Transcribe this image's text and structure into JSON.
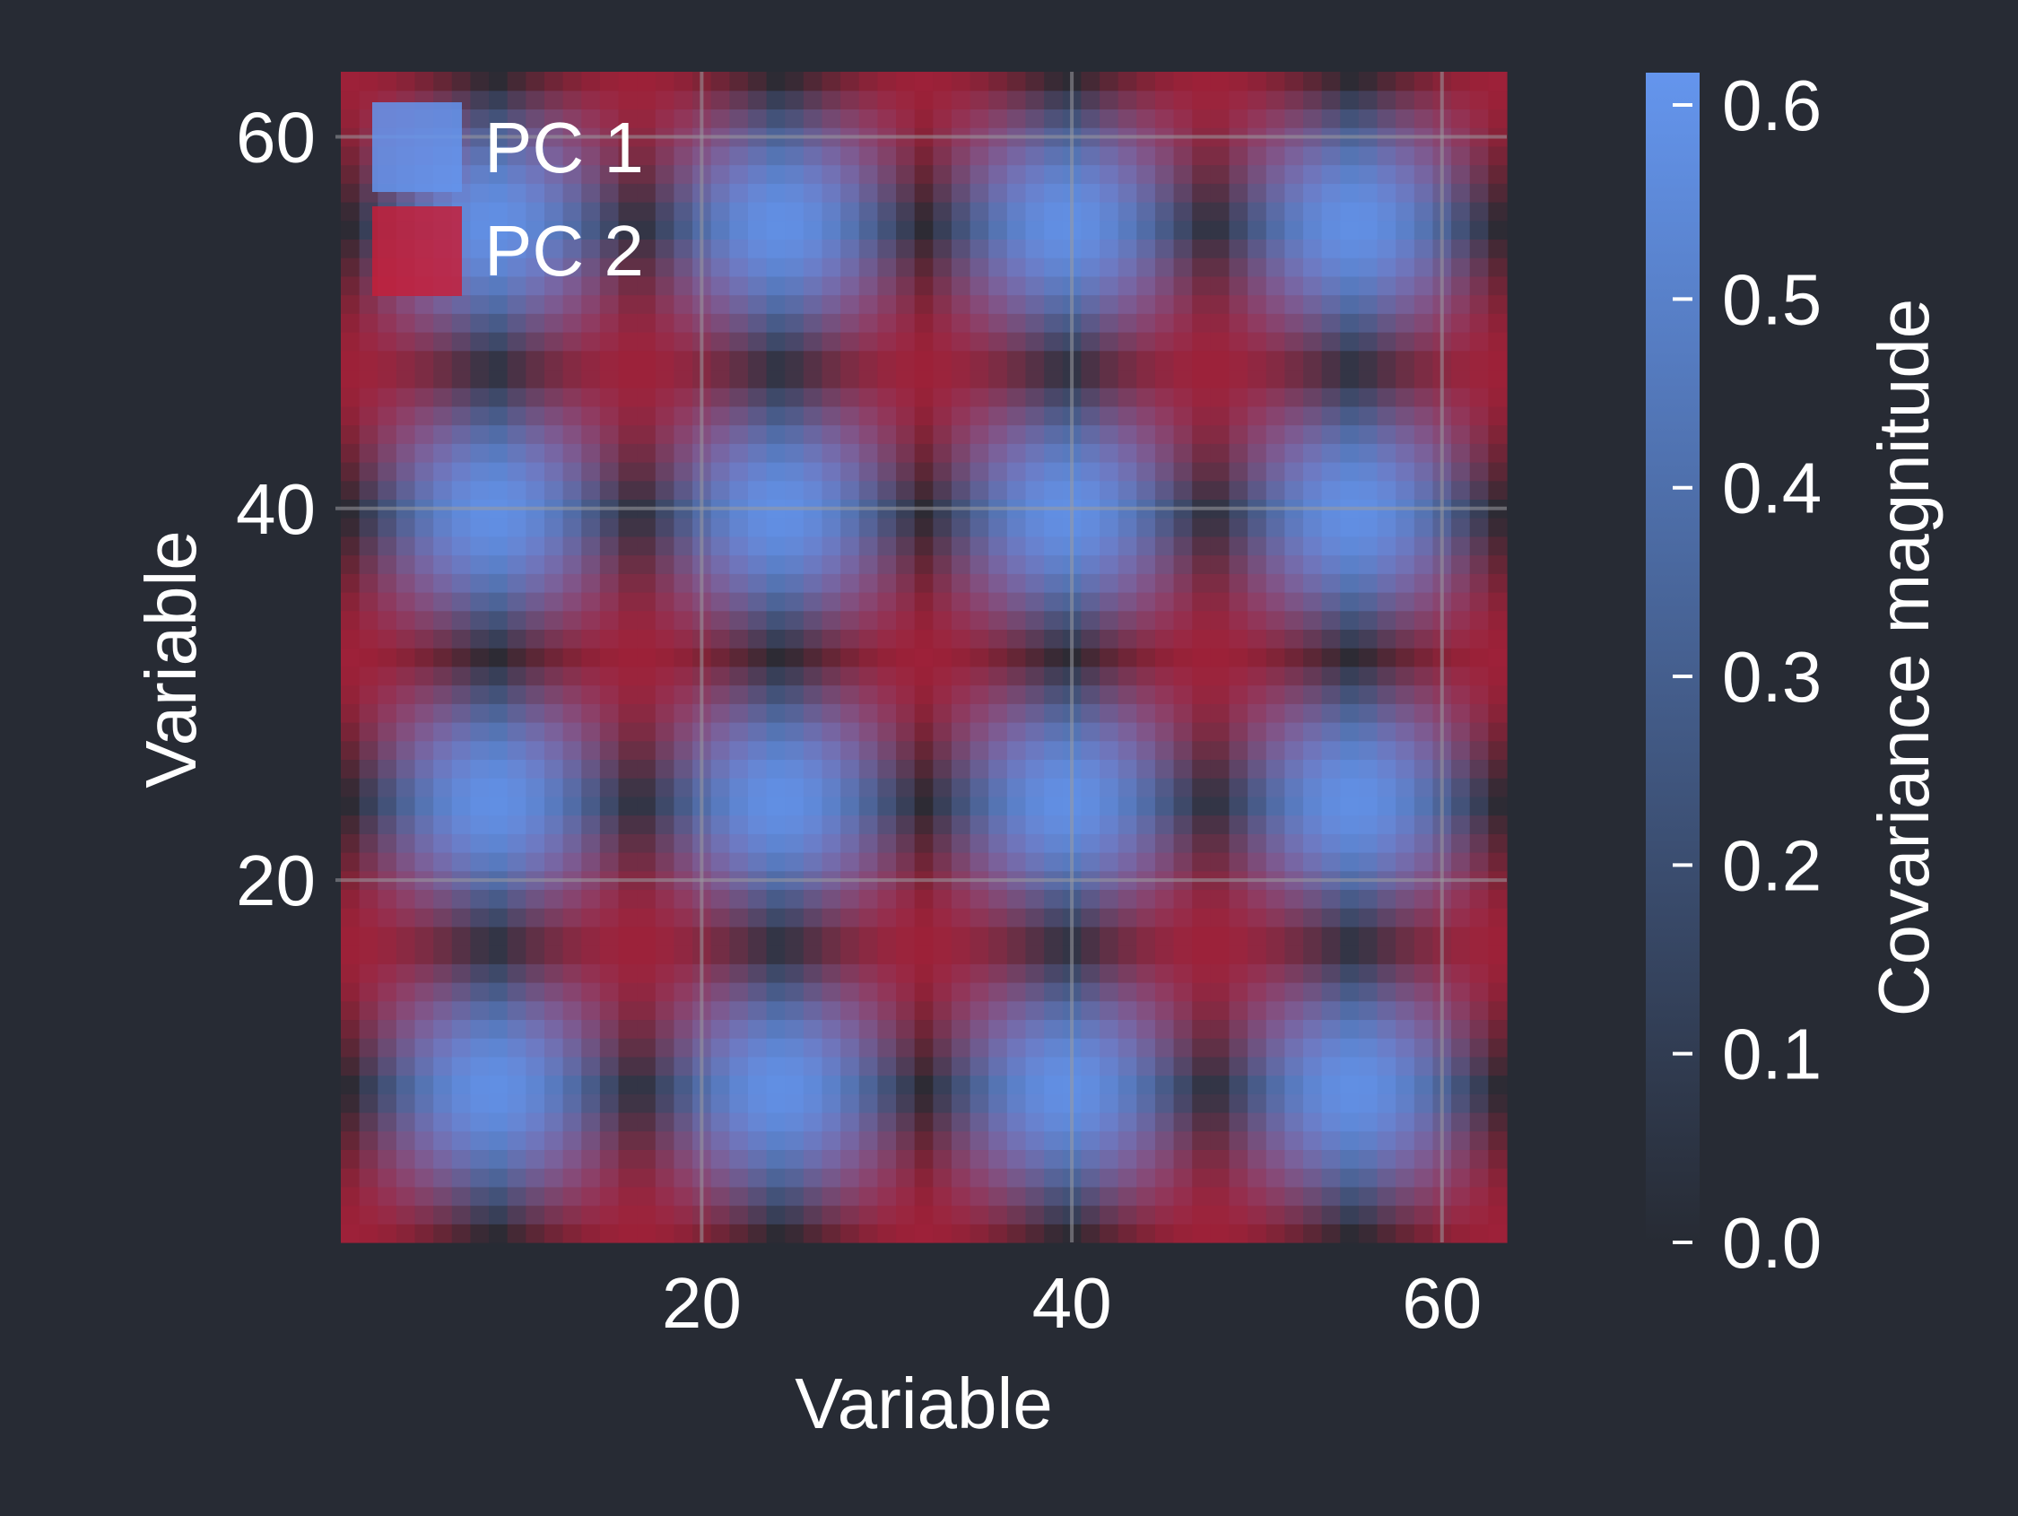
{
  "chart_data": {
    "type": "heatmap",
    "title": "",
    "xlabel": "Variable",
    "ylabel": "Variable",
    "x_range": [
      1,
      63
    ],
    "y_range": [
      1,
      63
    ],
    "xticks": [
      20,
      40,
      60
    ],
    "yticks": [
      20,
      40,
      60
    ],
    "grid": true,
    "legend": {
      "placement": "top-left",
      "entries": [
        {
          "label": "PC 1",
          "color": "#6495ed"
        },
        {
          "label": "PC 2",
          "color": "#c41e3a"
        }
      ]
    },
    "colorbar": {
      "label": "Covariance magnitude",
      "range": [
        0.0,
        0.6
      ],
      "ticks": [
        "0.0",
        "0.1",
        "0.2",
        "0.3",
        "0.4",
        "0.5",
        "0.6"
      ],
      "color_low": "#272b34",
      "color_high": "#6495ed"
    },
    "components": [
      {
        "name": "PC 1",
        "color": "#6495ed",
        "pattern": "sin(2π(i-1)/31)·sin(2π(j-1)/31)",
        "amplitude": 0.62
      },
      {
        "name": "PC 2",
        "color": "#c41e3a",
        "pattern": "cos(2π(i-1)/31)·cos(2π(j-1)/31)",
        "amplitude": 0.62
      }
    ],
    "grid_size": 63,
    "background": "#272b34"
  }
}
